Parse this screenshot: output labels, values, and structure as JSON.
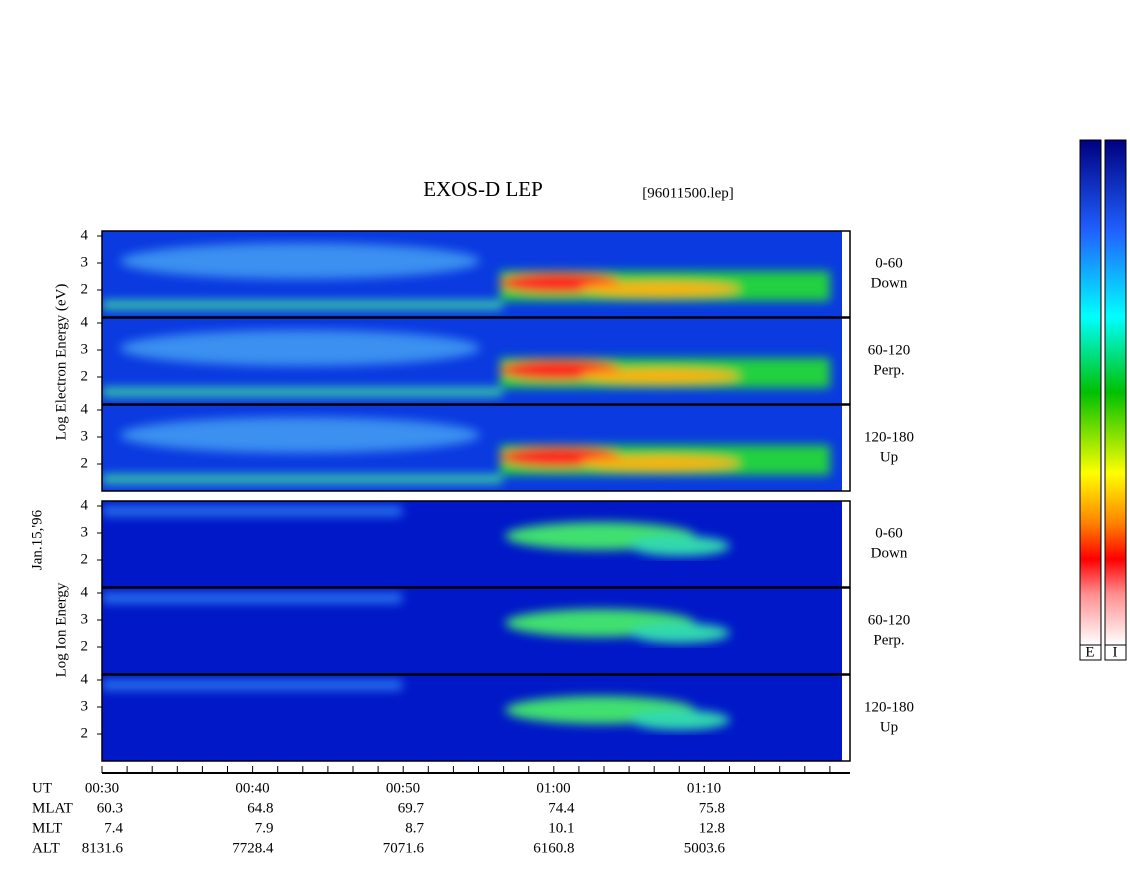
{
  "title": "EXOS-D LEP",
  "file": "[96011500.lep]",
  "date": "Jan.15,'96",
  "electron_label": "Log Electron Energy (eV)",
  "ion_label": "Log Ion Energy",
  "panels": [
    {
      "angle": "0-60",
      "direction": "Down",
      "yticks": [
        4,
        3,
        2
      ]
    },
    {
      "angle": "60-120",
      "direction": "Perp.",
      "yticks": [
        4,
        3,
        2
      ]
    },
    {
      "angle": "120-180",
      "direction": "Up",
      "yticks": [
        4,
        3,
        2
      ]
    },
    {
      "angle": "0-60",
      "direction": "Down",
      "yticks": [
        4,
        3,
        2
      ]
    },
    {
      "angle": "60-120",
      "direction": "Perp.",
      "yticks": [
        4,
        3,
        2
      ]
    },
    {
      "angle": "120-180",
      "direction": "Up",
      "yticks": [
        4,
        3,
        2
      ]
    }
  ],
  "time_axis": {
    "rows": [
      {
        "label": "UT",
        "values": [
          "00:30",
          "00:40",
          "00:50",
          "01:00",
          "01:10"
        ]
      },
      {
        "label": "MLAT",
        "values": [
          60.3,
          64.8,
          69.7,
          74.4,
          75.8
        ]
      },
      {
        "label": "MLT",
        "values": [
          7.4,
          7.9,
          8.7,
          10.1,
          12.8
        ]
      },
      {
        "label": "ALT",
        "values": [
          8131.6,
          7728.4,
          7071.6,
          6160.8,
          5003.6
        ]
      }
    ]
  },
  "colorbar_labels": [
    "E",
    "I"
  ]
}
